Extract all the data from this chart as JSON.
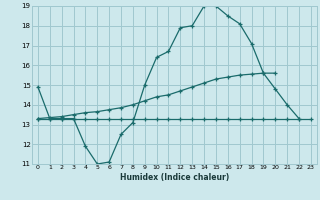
{
  "title": "",
  "xlabel": "Humidex (Indice chaleur)",
  "bg_color": "#cde8ec",
  "grid_color": "#a0c8cf",
  "line_color": "#1a6b6b",
  "xlim": [
    -0.5,
    23.5
  ],
  "ylim": [
    11,
    19
  ],
  "yticks": [
    11,
    12,
    13,
    14,
    15,
    16,
    17,
    18,
    19
  ],
  "xticks": [
    0,
    1,
    2,
    3,
    4,
    5,
    6,
    7,
    8,
    9,
    10,
    11,
    12,
    13,
    14,
    15,
    16,
    17,
    18,
    19,
    20,
    21,
    22,
    23
  ],
  "line1_x": [
    0,
    1,
    2,
    3,
    4,
    5,
    6,
    7,
    8,
    9,
    10,
    11,
    12,
    13,
    14,
    15,
    16,
    17,
    18,
    19,
    20,
    21,
    22
  ],
  "line1_y": [
    14.9,
    13.3,
    13.3,
    13.3,
    11.9,
    11.0,
    11.1,
    12.5,
    13.1,
    15.0,
    16.4,
    16.7,
    17.9,
    18.0,
    19.0,
    19.0,
    18.5,
    18.1,
    17.1,
    15.6,
    14.8,
    14.0,
    13.3
  ],
  "line2_x": [
    0,
    1,
    2,
    3,
    4,
    5,
    6,
    7,
    8,
    9,
    10,
    11,
    12,
    13,
    14,
    15,
    16,
    17,
    18,
    19,
    20,
    21,
    22,
    23
  ],
  "line2_y": [
    13.3,
    13.3,
    13.3,
    13.3,
    13.3,
    13.3,
    13.3,
    13.3,
    13.3,
    13.3,
    13.3,
    13.3,
    13.3,
    13.3,
    13.3,
    13.3,
    13.3,
    13.3,
    13.3,
    13.3,
    13.3,
    13.3,
    13.3,
    13.3
  ],
  "line3_x": [
    0,
    1,
    2,
    3,
    4,
    5,
    6,
    7,
    8,
    9,
    10,
    11,
    12,
    13,
    14,
    15,
    16,
    17,
    18,
    19,
    20
  ],
  "line3_y": [
    13.3,
    13.35,
    13.4,
    13.5,
    13.6,
    13.65,
    13.75,
    13.85,
    14.0,
    14.2,
    14.4,
    14.5,
    14.7,
    14.9,
    15.1,
    15.3,
    15.4,
    15.5,
    15.55,
    15.6,
    15.6
  ]
}
